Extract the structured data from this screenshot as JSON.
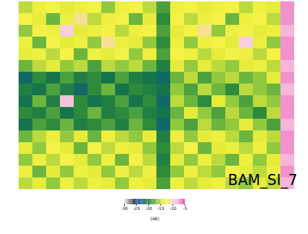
{
  "chart_data": {
    "type": "heatmap",
    "annotation": "BAM_SI_7",
    "tick_labels": false,
    "cells": [
      [
        -15,
        -13,
        -12,
        -14,
        -13,
        -12,
        -16,
        -13,
        -12,
        -15,
        -18,
        -13,
        -12,
        -14,
        -13,
        -12,
        -15,
        -13,
        -14,
        -7
      ],
      [
        -12,
        -14,
        -17,
        -13,
        -11,
        -15,
        -13,
        -12,
        -17,
        -14,
        -19,
        -12,
        -15,
        -13,
        -12,
        -17,
        -13,
        -12,
        -15,
        -7
      ],
      [
        -16,
        -12,
        -13,
        -10,
        -14,
        -13,
        -12,
        -15,
        -13,
        -12,
        -18,
        -14,
        -12,
        -11,
        -16,
        -13,
        -12,
        -14,
        -13,
        -8
      ],
      [
        -13,
        -17,
        -12,
        -14,
        -13,
        -16,
        -11,
        -13,
        -14,
        -16,
        -19,
        -13,
        -16,
        -13,
        -12,
        -14,
        -10,
        -13,
        -16,
        -7
      ],
      [
        -14,
        -13,
        -15,
        -12,
        -17,
        -13,
        -14,
        -12,
        -16,
        -13,
        -18,
        -12,
        -13,
        -15,
        -14,
        -12,
        -13,
        -15,
        -12,
        -7
      ],
      [
        -17,
        -15,
        -14,
        -16,
        -15,
        -18,
        -15,
        -16,
        -15,
        -17,
        -20,
        -14,
        -16,
        -14,
        -15,
        -16,
        -14,
        -13,
        -15,
        -8
      ],
      [
        -22,
        -19,
        -21,
        -18,
        -20,
        -19,
        -21,
        -18,
        -20,
        -21,
        -22,
        -17,
        -15,
        -18,
        -16,
        -15,
        -17,
        -16,
        -14,
        -7
      ],
      [
        -20,
        -21,
        -18,
        -20,
        -22,
        -19,
        -17,
        -21,
        -19,
        -20,
        -21,
        -16,
        -18,
        -15,
        -17,
        -19,
        -15,
        -16,
        -17,
        -8
      ],
      [
        -21,
        -17,
        -20,
        -9,
        -19,
        -21,
        -20,
        -18,
        -21,
        -19,
        -22,
        -15,
        -17,
        -19,
        -14,
        -16,
        -18,
        -15,
        -16,
        -7
      ],
      [
        -19,
        -20,
        -18,
        -21,
        -19,
        -17,
        -20,
        -19,
        -18,
        -20,
        -21,
        -17,
        -14,
        -16,
        -18,
        -15,
        -17,
        -19,
        -15,
        -7
      ],
      [
        -21,
        -18,
        -19,
        -17,
        -20,
        -19,
        -18,
        -20,
        -17,
        -19,
        -22,
        -16,
        -18,
        -15,
        -17,
        -16,
        -14,
        -16,
        -18,
        -8
      ],
      [
        -17,
        -15,
        -13,
        -16,
        -14,
        -17,
        -13,
        -15,
        -16,
        -14,
        -20,
        -13,
        -16,
        -14,
        -13,
        -15,
        -17,
        -14,
        -15,
        -7
      ],
      [
        -14,
        -16,
        -12,
        -14,
        -17,
        -12,
        -15,
        -13,
        -14,
        -16,
        -19,
        -15,
        -12,
        -17,
        -14,
        -13,
        -15,
        -13,
        -16,
        -7
      ],
      [
        -16,
        -13,
        -15,
        -12,
        -14,
        -16,
        -13,
        -17,
        -12,
        -15,
        -20,
        -14,
        -16,
        -13,
        -15,
        -17,
        -13,
        -16,
        -14,
        -8
      ],
      [
        -13,
        -17,
        -14,
        -16,
        -13,
        -14,
        -16,
        -13,
        -15,
        -13,
        -19,
        -16,
        -13,
        -15,
        -16,
        -12,
        -14,
        -15,
        -13,
        -7
      ],
      [
        -15,
        -14,
        -16,
        -13,
        -15,
        -13,
        -14,
        -16,
        -13,
        -14,
        -18,
        -13,
        -15,
        -14,
        -13,
        -15,
        -16,
        -14,
        -15,
        -8
      ]
    ],
    "colorbar": {
      "range": [
        -30,
        -5
      ],
      "ticks": [
        -30,
        -25,
        -20,
        -15,
        -10,
        -5
      ],
      "label": "[dB]"
    }
  }
}
